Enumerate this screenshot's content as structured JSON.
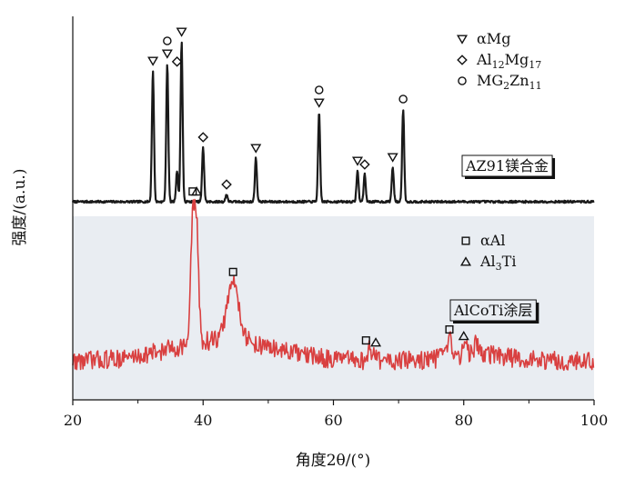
{
  "chart_data": {
    "type": "line",
    "xlabel": "角度2θ/(°)",
    "ylabel": "强度/(a.u.)",
    "xlim": [
      20,
      100
    ],
    "x_ticks": [
      "20",
      "40",
      "60",
      "80",
      "100"
    ],
    "grid": false,
    "colors": {
      "az91": "#1a1a1a",
      "alcoti": "#d94040",
      "background_lower": "#e9edf2"
    },
    "series": [
      {
        "name": "AZ91镁合金",
        "key": "az91",
        "baseline": 0.04,
        "peaks": [
          {
            "x": 32.3,
            "height": 0.72
          },
          {
            "x": 34.5,
            "height": 0.76
          },
          {
            "x": 36.0,
            "height": 0.17
          },
          {
            "x": 36.7,
            "height": 0.88
          },
          {
            "x": 40.0,
            "height": 0.3
          },
          {
            "x": 43.6,
            "height": 0.04
          },
          {
            "x": 48.1,
            "height": 0.24
          },
          {
            "x": 57.8,
            "height": 0.49
          },
          {
            "x": 63.7,
            "height": 0.17
          },
          {
            "x": 64.8,
            "height": 0.15
          },
          {
            "x": 69.1,
            "height": 0.19
          },
          {
            "x": 70.7,
            "height": 0.51
          }
        ]
      },
      {
        "name": "AlCoTi涂层",
        "key": "alcoti",
        "baseline": 0.12,
        "peaks": [
          {
            "x": 38.4,
            "height": 0.66
          },
          {
            "x": 39.0,
            "height": 0.62
          },
          {
            "x": 44.6,
            "height": 0.34
          },
          {
            "x": 65.5,
            "height": 0.06
          },
          {
            "x": 66.4,
            "height": 0.05
          },
          {
            "x": 77.8,
            "height": 0.1
          },
          {
            "x": 80.3,
            "height": 0.05
          },
          {
            "x": 82.0,
            "height": 0.07
          }
        ]
      }
    ],
    "legends": [
      {
        "series": "az91",
        "position": "top-right",
        "entries": [
          {
            "marker": "triangle-down",
            "html": "αMg"
          },
          {
            "marker": "diamond",
            "html": "Al<tspan dy='4' font-size='11'>12</tspan><tspan dy='-4'>Mg</tspan><tspan dy='4' font-size='11'>17</tspan>"
          },
          {
            "marker": "circle",
            "html": "MG<tspan dy='4' font-size='11'>2</tspan><tspan dy='-4'>Zn</tspan><tspan dy='4' font-size='11'>11</tspan>"
          }
        ]
      },
      {
        "series": "alcoti",
        "position": "middle-right",
        "entries": [
          {
            "marker": "square",
            "html": "αAl"
          },
          {
            "marker": "triangle-up",
            "html": "Al<tspan dy='4' font-size='11'>3</tspan><tspan dy='-4'>Ti</tspan>"
          }
        ]
      }
    ],
    "peak_markers": [
      {
        "series": "az91",
        "x": 32.3,
        "symbols": [
          "triangle-down"
        ]
      },
      {
        "series": "az91",
        "x": 34.5,
        "symbols": [
          "triangle-down",
          "circle"
        ]
      },
      {
        "series": "az91",
        "x": 36.0,
        "symbols": [
          "diamond"
        ]
      },
      {
        "series": "az91",
        "x": 36.7,
        "symbols": [
          "triangle-down"
        ]
      },
      {
        "series": "az91",
        "x": 40.0,
        "symbols": [
          "diamond"
        ]
      },
      {
        "series": "az91",
        "x": 43.6,
        "symbols": [
          "diamond"
        ]
      },
      {
        "series": "az91",
        "x": 48.1,
        "symbols": [
          "triangle-down"
        ]
      },
      {
        "series": "az91",
        "x": 57.8,
        "symbols": [
          "triangle-down",
          "circle"
        ]
      },
      {
        "series": "az91",
        "x": 63.7,
        "symbols": [
          "triangle-down"
        ]
      },
      {
        "series": "az91",
        "x": 64.8,
        "symbols": [
          "diamond"
        ]
      },
      {
        "series": "az91",
        "x": 69.1,
        "symbols": [
          "triangle-down"
        ]
      },
      {
        "series": "az91",
        "x": 70.7,
        "symbols": [
          "circle"
        ]
      },
      {
        "series": "alcoti",
        "x": 38.4,
        "symbols": [
          "square"
        ]
      },
      {
        "series": "alcoti",
        "x": 39.0,
        "symbols": [
          "triangle-up"
        ]
      },
      {
        "series": "alcoti",
        "x": 44.6,
        "symbols": [
          "square"
        ]
      },
      {
        "series": "alcoti",
        "x": 65.0,
        "symbols": [
          "square"
        ]
      },
      {
        "series": "alcoti",
        "x": 66.5,
        "symbols": [
          "triangle-up"
        ]
      },
      {
        "series": "alcoti",
        "x": 77.8,
        "symbols": [
          "square"
        ]
      },
      {
        "series": "alcoti",
        "x": 80.0,
        "symbols": [
          "triangle-up"
        ]
      }
    ]
  }
}
